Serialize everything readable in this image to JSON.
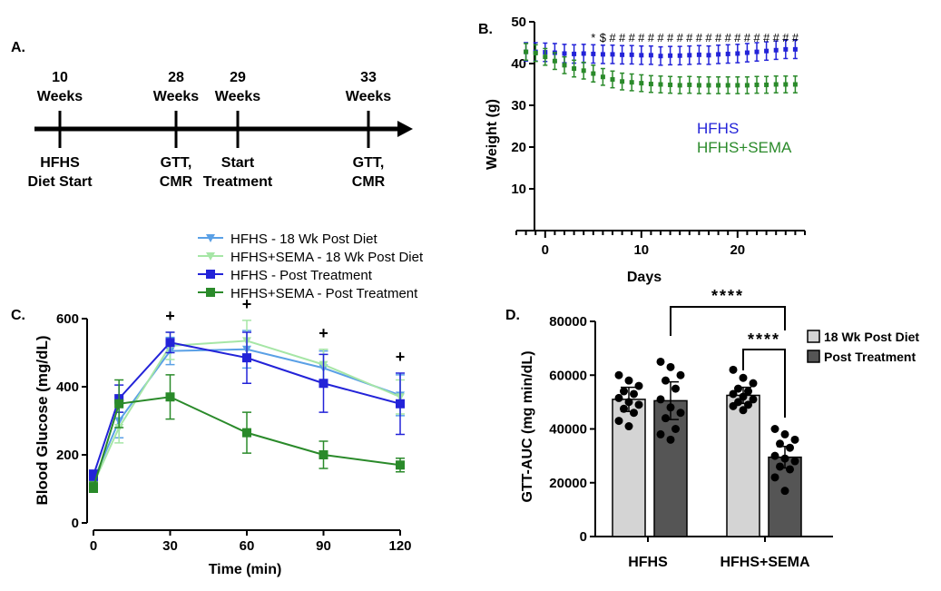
{
  "panelA": {
    "label": "A.",
    "events": [
      {
        "weeks": "10",
        "unit": "Weeks",
        "desc1": "HFHS",
        "desc2": "Diet Start"
      },
      {
        "weeks": "28",
        "unit": "Weeks",
        "desc1": "GTT,",
        "desc2": "CMR"
      },
      {
        "weeks": "29",
        "unit": "Weeks",
        "desc1": "Start",
        "desc2": "Treatment"
      },
      {
        "weeks": "33",
        "unit": "Weeks",
        "desc1": "GTT,",
        "desc2": "CMR"
      }
    ]
  },
  "chart_data": [
    {
      "panel": "B.",
      "type": "line",
      "xlabel": "Days",
      "ylabel": "Weight (g)",
      "xlim": [
        -3,
        27
      ],
      "ylim": [
        0,
        50
      ],
      "xticks": [
        0,
        10,
        20
      ],
      "yticks": [
        10,
        20,
        30,
        40,
        50
      ],
      "legend": [
        "HFHS",
        "HFHS+SEMA"
      ],
      "legend_colors": [
        "#2323d8",
        "#2a8a2a"
      ],
      "annotation_chars": [
        "*",
        "$",
        "#",
        "#",
        "#",
        "#",
        "#",
        "#",
        "#",
        "#",
        "#",
        "#",
        "#",
        "#",
        "#",
        "#",
        "#",
        "#",
        "#",
        "#",
        "#",
        "#"
      ],
      "series": [
        {
          "name": "HFHS",
          "color": "#2323d8",
          "x": [
            -2,
            -1,
            0,
            1,
            2,
            3,
            4,
            5,
            6,
            7,
            8,
            9,
            10,
            11,
            12,
            13,
            14,
            15,
            16,
            17,
            18,
            19,
            20,
            21,
            22,
            23,
            24,
            25,
            26
          ],
          "y": [
            42.8,
            42.8,
            42.7,
            42.6,
            42.4,
            42.3,
            42.4,
            42.3,
            42.2,
            42.2,
            42.1,
            42.1,
            42.0,
            42.0,
            41.8,
            41.9,
            41.9,
            42.0,
            42.1,
            42.0,
            42.2,
            42.3,
            42.4,
            42.6,
            42.8,
            43.0,
            43.2,
            43.4,
            43.4
          ],
          "err": 2.2
        },
        {
          "name": "HFHS+SEMA",
          "color": "#2a8a2a",
          "x": [
            -2,
            -1,
            0,
            1,
            2,
            3,
            4,
            5,
            6,
            7,
            8,
            9,
            10,
            11,
            12,
            13,
            14,
            15,
            16,
            17,
            18,
            19,
            20,
            21,
            22,
            23,
            24,
            25,
            26
          ],
          "y": [
            42.8,
            42.5,
            41.6,
            40.6,
            39.6,
            38.8,
            38.3,
            37.6,
            36.8,
            36.2,
            35.7,
            35.5,
            35.3,
            35.1,
            35.0,
            34.9,
            34.8,
            34.9,
            34.8,
            34.8,
            34.8,
            34.8,
            34.8,
            34.8,
            34.9,
            34.9,
            35.0,
            35.0,
            35.0
          ],
          "err": 2.0
        }
      ]
    },
    {
      "panel": "C.",
      "type": "line",
      "xlabel": "Time (min)",
      "ylabel": "Blood Glucose (mg/dL)",
      "xlim": [
        0,
        120
      ],
      "ylim": [
        0,
        600
      ],
      "xticks": [
        0,
        30,
        60,
        90,
        120
      ],
      "yticks": [
        0,
        200,
        400,
        600
      ],
      "annotation": "+",
      "annotation_x": [
        30,
        60,
        90,
        120
      ],
      "series": [
        {
          "name": "HFHS - 18 Wk Post Diet",
          "color": "#5aa0e6",
          "marker": "triangle-down",
          "x": [
            0,
            10,
            30,
            60,
            90,
            120
          ],
          "y": [
            125,
            300,
            505,
            510,
            455,
            375
          ],
          "err": [
            15,
            50,
            40,
            55,
            50,
            60
          ]
        },
        {
          "name": "HFHS+SEMA - 18 Wk Post Diet",
          "color": "#a6e6a6",
          "marker": "triangle-down",
          "x": [
            0,
            10,
            30,
            60,
            90,
            120
          ],
          "y": [
            115,
            280,
            520,
            535,
            465,
            370
          ],
          "err": [
            15,
            45,
            40,
            60,
            45,
            50
          ]
        },
        {
          "name": "HFHS - Post Treatment",
          "color": "#2323d8",
          "marker": "square",
          "x": [
            0,
            10,
            30,
            60,
            90,
            120
          ],
          "y": [
            140,
            365,
            530,
            485,
            410,
            350
          ],
          "err": [
            15,
            40,
            30,
            75,
            85,
            90
          ]
        },
        {
          "name": "HFHS+SEMA - Post Treatment",
          "color": "#2a8a2a",
          "marker": "square",
          "x": [
            0,
            10,
            30,
            60,
            90,
            120
          ],
          "y": [
            105,
            350,
            370,
            265,
            200,
            170
          ],
          "err": [
            15,
            70,
            65,
            60,
            40,
            20
          ]
        }
      ]
    },
    {
      "panel": "D.",
      "type": "bar",
      "xlabel": "",
      "ylabel": "GTT-AUC (mg min/dL)",
      "ylim": [
        0,
        80000
      ],
      "yticks": [
        0,
        20000,
        40000,
        60000,
        80000
      ],
      "categories": [
        "HFHS",
        "HFHS+SEMA"
      ],
      "significance": [
        "****",
        "****"
      ],
      "series": [
        {
          "name": "18 Wk Post Diet",
          "color": "#d4d4d4",
          "values": [
            51000,
            52500
          ],
          "err": [
            4500,
            3000
          ],
          "points": [
            [
              60000,
              58000,
              56000,
              54000,
              53000,
              51500,
              50000,
              49000,
              47500,
              46000,
              43000,
              41000
            ],
            [
              62000,
              59000,
              57000,
              55000,
              54000,
              53000,
              52000,
              51000,
              50000,
              49000,
              48500,
              47000
            ]
          ]
        },
        {
          "name": "Post Treatment",
          "color": "#555555",
          "values": [
            50500,
            29500
          ],
          "err": [
            7000,
            4000
          ],
          "points": [
            [
              65000,
              63000,
              60000,
              58000,
              55000,
              51000,
              48000,
              46000,
              44000,
              40000,
              38000,
              36000
            ],
            [
              40000,
              38000,
              36000,
              34500,
              33000,
              30000,
              29000,
              28000,
              26000,
              25000,
              22000,
              17000
            ]
          ]
        }
      ]
    }
  ]
}
